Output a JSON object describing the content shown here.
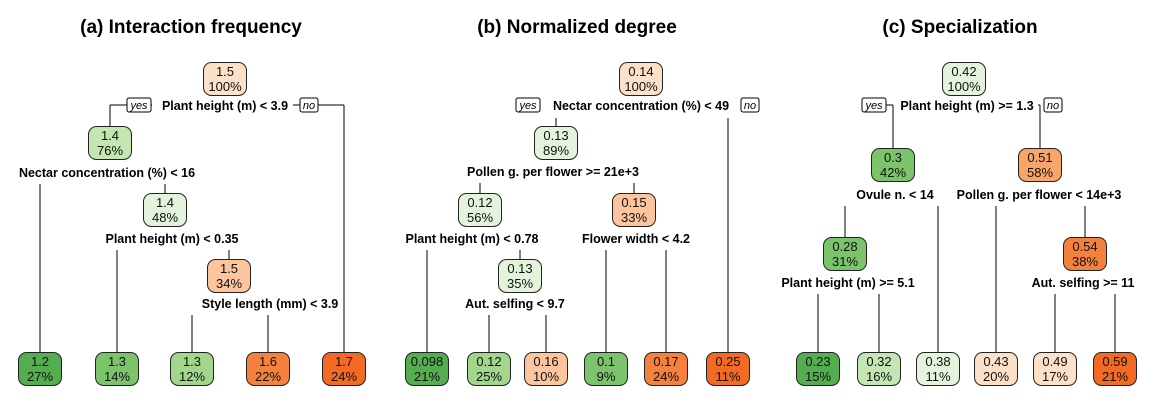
{
  "colors": {
    "o1": "#fde0c8",
    "o2": "#fcc59e",
    "o3": "#f8a56a",
    "o4": "#f5813e",
    "o5": "#f26a24",
    "g1": "#e4f4dc",
    "g2": "#c4e6b3",
    "g3": "#a1d68b",
    "g4": "#7bc46b",
    "g5": "#54ad4f"
  },
  "labels": {
    "yes": "yes",
    "no": "no"
  },
  "panels": [
    {
      "title": "(a) Interaction frequency",
      "nodes": [
        {
          "v": "1.5",
          "p": "100%",
          "c": "o1"
        },
        {
          "v": "1.4",
          "p": "76%",
          "c": "g2"
        },
        {
          "v": "1.4",
          "p": "48%",
          "c": "g1"
        },
        {
          "v": "1.5",
          "p": "34%",
          "c": "o2"
        },
        {
          "v": "1.2",
          "p": "27%",
          "c": "g5"
        },
        {
          "v": "1.3",
          "p": "14%",
          "c": "g4"
        },
        {
          "v": "1.3",
          "p": "12%",
          "c": "g3"
        },
        {
          "v": "1.6",
          "p": "22%",
          "c": "o4"
        },
        {
          "v": "1.7",
          "p": "24%",
          "c": "o5"
        }
      ],
      "splits": [
        "Plant height (m) < 3.9",
        "Nectar concentration (%) < 16",
        "Plant height (m) < 0.35",
        "Style length (mm) < 3.9"
      ]
    },
    {
      "title": "(b) Normalized degree",
      "nodes": [
        {
          "v": "0.14",
          "p": "100%",
          "c": "o1"
        },
        {
          "v": "0.13",
          "p": "89%",
          "c": "g1"
        },
        {
          "v": "0.12",
          "p": "56%",
          "c": "g1"
        },
        {
          "v": "0.15",
          "p": "33%",
          "c": "o2"
        },
        {
          "v": "0.13",
          "p": "35%",
          "c": "g1"
        },
        {
          "v": "0.098",
          "p": "21%",
          "c": "g5"
        },
        {
          "v": "0.12",
          "p": "25%",
          "c": "g3"
        },
        {
          "v": "0.16",
          "p": "10%",
          "c": "o2"
        },
        {
          "v": "0.1",
          "p": "9%",
          "c": "g4"
        },
        {
          "v": "0.17",
          "p": "24%",
          "c": "o4"
        },
        {
          "v": "0.25",
          "p": "11%",
          "c": "o5"
        }
      ],
      "splits": [
        "Nectar concentration (%) < 49",
        "Pollen g. per flower >= 21e+3",
        "Plant height (m) < 0.78",
        "Flower width < 4.2",
        "Aut. selfing < 9.7"
      ]
    },
    {
      "title": "(c) Specialization",
      "nodes": [
        {
          "v": "0.42",
          "p": "100%",
          "c": "g1"
        },
        {
          "v": "0.3",
          "p": "42%",
          "c": "g4"
        },
        {
          "v": "0.51",
          "p": "58%",
          "c": "o3"
        },
        {
          "v": "0.28",
          "p": "31%",
          "c": "g4"
        },
        {
          "v": "0.54",
          "p": "38%",
          "c": "o4"
        },
        {
          "v": "0.23",
          "p": "15%",
          "c": "g5"
        },
        {
          "v": "0.32",
          "p": "16%",
          "c": "g2"
        },
        {
          "v": "0.38",
          "p": "11%",
          "c": "g1"
        },
        {
          "v": "0.43",
          "p": "20%",
          "c": "o1"
        },
        {
          "v": "0.49",
          "p": "17%",
          "c": "o1"
        },
        {
          "v": "0.59",
          "p": "21%",
          "c": "o5"
        }
      ],
      "splits": [
        "Plant height (m) >= 1.3",
        "Ovule n. < 14",
        "Pollen g. per flower < 14e+3",
        "Plant height (m) >= 5.1",
        "Aut. selfing >= 11"
      ]
    }
  ]
}
